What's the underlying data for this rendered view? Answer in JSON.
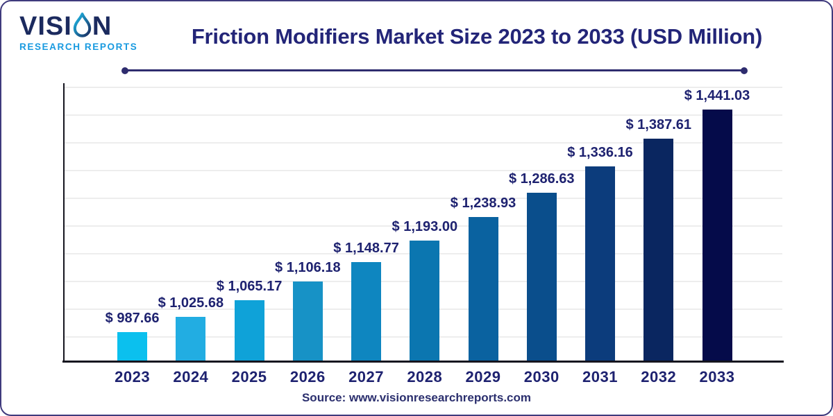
{
  "header": {
    "logo": {
      "brand_part1": "VISI",
      "brand_part2": "N",
      "subtitle": "RESEARCH REPORTS"
    },
    "title": "Friction Modifiers Market Size 2023 to 2033 (USD Million)"
  },
  "chart_data": {
    "type": "bar",
    "title": "Friction Modifiers Market Size 2023 to 2033 (USD Million)",
    "unit": "USD Million",
    "categories": [
      "2023",
      "2024",
      "2025",
      "2026",
      "2027",
      "2028",
      "2029",
      "2030",
      "2031",
      "2032",
      "2033"
    ],
    "values": [
      987.66,
      1025.68,
      1065.17,
      1106.18,
      1148.77,
      1193.0,
      1238.93,
      1286.63,
      1336.16,
      1387.61,
      1441.03
    ],
    "labels": [
      "$ 987.66",
      "$ 1,025.68",
      "$ 1,065.17",
      "$ 1,106.18",
      "$ 1,148.77",
      "$ 1,193.00",
      "$ 1,238.93",
      "$ 1,286.63",
      "$ 1,336.16",
      "$ 1,387.61",
      "$ 1,441.03"
    ],
    "bar_colors": [
      "#0bc0ee",
      "#22ade2",
      "#0fa2d8",
      "#1792c6",
      "#0e86c0",
      "#0b76b0",
      "#0a62a0",
      "#0a4e8c",
      "#0c3c7c",
      "#0a2660",
      "#050b4a"
    ],
    "xlabel": "",
    "ylabel": "",
    "ylim": [
      900,
      1441.03
    ],
    "y_base": 900,
    "grid": "horizontal",
    "gridline_count": 10,
    "legend": "none",
    "label_color": "#1e2270"
  },
  "footer": {
    "source": "Source: www.visionresearchreports.com"
  }
}
